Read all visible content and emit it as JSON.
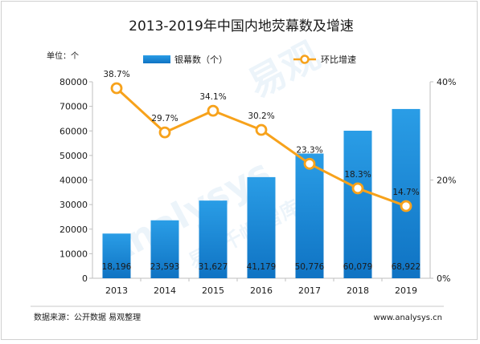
{
  "chart_data": {
    "type": "bar",
    "title": "2013-2019年中国内地荧幕数及增速",
    "unit_label": "单位：个",
    "categories": [
      "2013",
      "2014",
      "2015",
      "2016",
      "2017",
      "2018",
      "2019"
    ],
    "series": [
      {
        "name": "银幕数（个）",
        "type": "bar",
        "axis": "left",
        "values": [
          18196,
          23593,
          31627,
          41179,
          50776,
          60079,
          68922
        ],
        "labels": [
          "18,196",
          "23,593",
          "31,627",
          "41,179",
          "50,776",
          "60,079",
          "68,922"
        ],
        "color": "#1a8ad8"
      },
      {
        "name": "环比增速",
        "type": "line",
        "axis": "right",
        "values": [
          38.7,
          29.7,
          34.1,
          30.2,
          23.3,
          18.3,
          14.7
        ],
        "labels": [
          "38.7%",
          "29.7%",
          "34.1%",
          "30.2%",
          "23.3%",
          "18.3%",
          "14.7%"
        ],
        "color": "#f7a21b"
      }
    ],
    "y_left": {
      "min": 0,
      "max": 80000,
      "ticks": [
        "0",
        "10000",
        "20000",
        "30000",
        "40000",
        "50000",
        "60000",
        "70000",
        "80000"
      ]
    },
    "y_right": {
      "min": 0,
      "max": 40,
      "ticks": [
        "0%",
        "20%",
        "40%"
      ]
    },
    "grid": false,
    "legend": "top"
  },
  "footer": {
    "source": "数据来源：公开数据 易观整理",
    "url": "www.analysys.cn"
  },
  "watermark": {
    "brand_latin": "Analysys",
    "brand_cn": "易观",
    "sub": "易观千帆 智库",
    "url": "www.analysys.cn"
  },
  "colors": {
    "bar_top": "#2a9de6",
    "bar_bottom": "#0f73c3",
    "line": "#f7a21b",
    "marker_fill": "#ffffff"
  }
}
